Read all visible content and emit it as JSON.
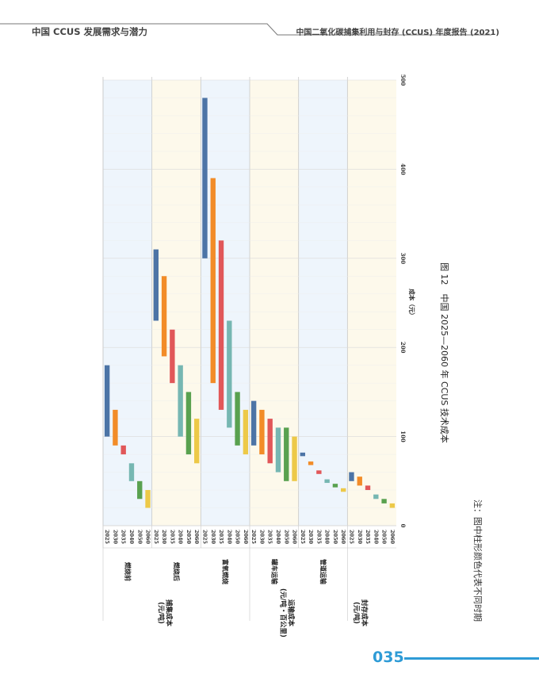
{
  "header": {
    "left": "中国 CCUS 发展需求与潜力",
    "right": "中国二氧化碳捕集利用与封存 (CCUS) 年度报告 (2021)"
  },
  "page_number": "035",
  "chart_data": {
    "type": "bar",
    "orientation": "horizontal-floating-range",
    "rotation": "chart printed rotated 90° clockwise",
    "title": "图 12　中国 2025—2060 年 CCUS 技术成本",
    "note": "注：图中柱形颜色代表不同时期",
    "xlabel": "成本（元）",
    "xlim": [
      0,
      500
    ],
    "xticks": [
      0,
      100,
      200,
      300,
      400,
      500
    ],
    "grid": true,
    "years": [
      "2025",
      "2030",
      "2035",
      "2040",
      "2050",
      "2060"
    ],
    "year_colors": [
      "#4c74a6",
      "#f28c28",
      "#e15759",
      "#76b7b2",
      "#59a14f",
      "#edc948"
    ],
    "group_backgrounds": [
      "#eef5fc",
      "#fdf9eb"
    ],
    "major_groups": [
      {
        "label": "捕集成本\n(元/吨)",
        "subs": [
          0,
          1,
          2
        ]
      },
      {
        "label": "运输成本\n(元/吨・百公里)",
        "subs": [
          3,
          4
        ]
      },
      {
        "label": "封存成本\n(元/吨)",
        "subs": [
          5
        ]
      }
    ],
    "groups": [
      {
        "name": "燃烧前",
        "ranges": [
          [
            100,
            180
          ],
          [
            90,
            130
          ],
          [
            80,
            90
          ],
          [
            50,
            70
          ],
          [
            30,
            50
          ],
          [
            20,
            40
          ]
        ]
      },
      {
        "name": "燃烧后",
        "ranges": [
          [
            230,
            310
          ],
          [
            190,
            280
          ],
          [
            160,
            220
          ],
          [
            100,
            180
          ],
          [
            80,
            150
          ],
          [
            70,
            120
          ]
        ]
      },
      {
        "name": "富氧燃烧",
        "ranges": [
          [
            300,
            480
          ],
          [
            160,
            390
          ],
          [
            130,
            320
          ],
          [
            110,
            230
          ],
          [
            90,
            150
          ],
          [
            80,
            130
          ]
        ]
      },
      {
        "name": "罐车运输",
        "ranges": [
          [
            90,
            140
          ],
          [
            80,
            130
          ],
          [
            70,
            120
          ],
          [
            60,
            110
          ],
          [
            50,
            110
          ],
          [
            50,
            100
          ]
        ]
      },
      {
        "name": "管道运输",
        "ranges": [
          [
            78,
            82
          ],
          [
            68,
            72
          ],
          [
            58,
            62
          ],
          [
            48,
            52
          ],
          [
            43,
            47
          ],
          [
            38,
            42
          ]
        ]
      },
      {
        "name": "",
        "ranges": [
          [
            50,
            60
          ],
          [
            45,
            55
          ],
          [
            40,
            45
          ],
          [
            30,
            35
          ],
          [
            25,
            30
          ],
          [
            20,
            25
          ]
        ]
      }
    ]
  }
}
